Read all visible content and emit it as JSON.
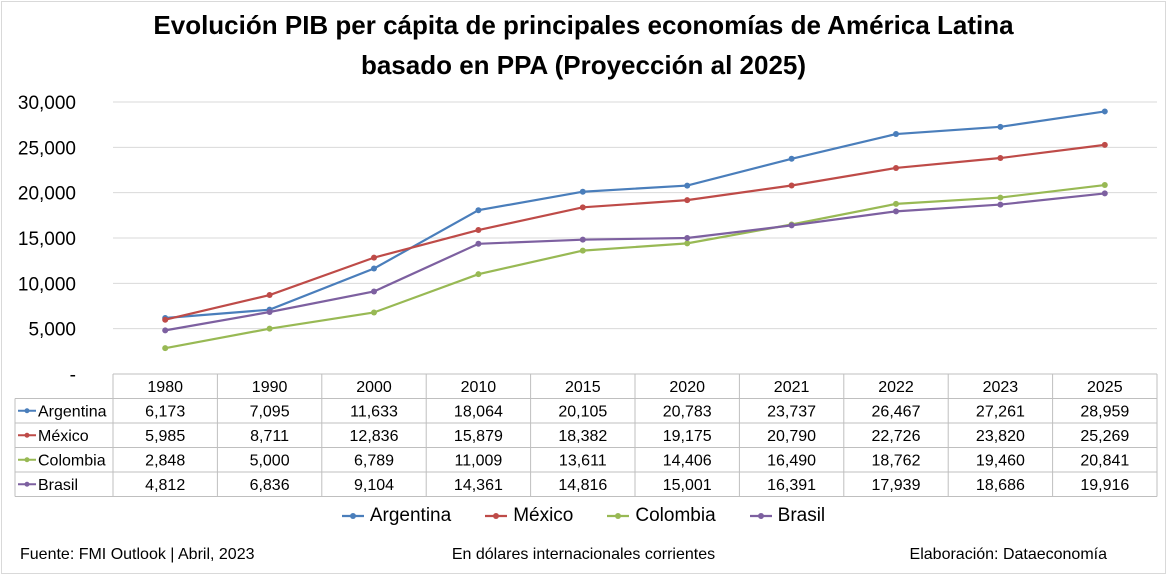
{
  "title_line1": "Evolución PIB per cápita de principales economías de América Latina",
  "title_line2": "basado en PPA (Proyección al 2025)",
  "footer": {
    "source": "Fuente: FMI Outlook | Abril, 2023",
    "units": "En dólares internacionales corrientes",
    "credit": "Elaboración: Dataeconomía"
  },
  "chart_data": {
    "type": "line",
    "categories": [
      "1980",
      "1990",
      "2000",
      "2010",
      "2015",
      "2020",
      "2021",
      "2022",
      "2023",
      "2025"
    ],
    "y_tick_labels": [
      "-",
      "5,000",
      "10,000",
      "15,000",
      "20,000",
      "25,000",
      "30,000"
    ],
    "y_ticks": [
      0,
      5000,
      10000,
      15000,
      20000,
      25000,
      30000
    ],
    "ylim": [
      0,
      30000
    ],
    "grid": true,
    "legend": "bottom",
    "data_table": true,
    "series": [
      {
        "name": "Argentina",
        "color": "#4a7ebb",
        "values": [
          6173,
          7095,
          11633,
          18064,
          20105,
          20783,
          23737,
          26467,
          27261,
          28959
        ],
        "labels": [
          "6,173",
          "7,095",
          "11,633",
          "18,064",
          "20,105",
          "20,783",
          "23,737",
          "26,467",
          "27,261",
          "28,959"
        ]
      },
      {
        "name": "México",
        "color": "#be4b48",
        "values": [
          5985,
          8711,
          12836,
          15879,
          18382,
          19175,
          20790,
          22726,
          23820,
          25269
        ],
        "labels": [
          "5,985",
          "8,711",
          "12,836",
          "15,879",
          "18,382",
          "19,175",
          "20,790",
          "22,726",
          "23,820",
          "25,269"
        ]
      },
      {
        "name": "Colombia",
        "color": "#98b954",
        "values": [
          2848,
          5000,
          6789,
          11009,
          13611,
          14406,
          16490,
          18762,
          19460,
          20841
        ],
        "labels": [
          "2,848",
          "5,000",
          "6,789",
          "11,009",
          "13,611",
          "14,406",
          "16,490",
          "18,762",
          "19,460",
          "20,841"
        ]
      },
      {
        "name": "Brasil",
        "color": "#7d60a0",
        "values": [
          4812,
          6836,
          9104,
          14361,
          14816,
          15001,
          16391,
          17939,
          18686,
          19916
        ],
        "labels": [
          "4,812",
          "6,836",
          "9,104",
          "14,361",
          "14,816",
          "15,001",
          "16,391",
          "17,939",
          "18,686",
          "19,916"
        ]
      }
    ]
  }
}
